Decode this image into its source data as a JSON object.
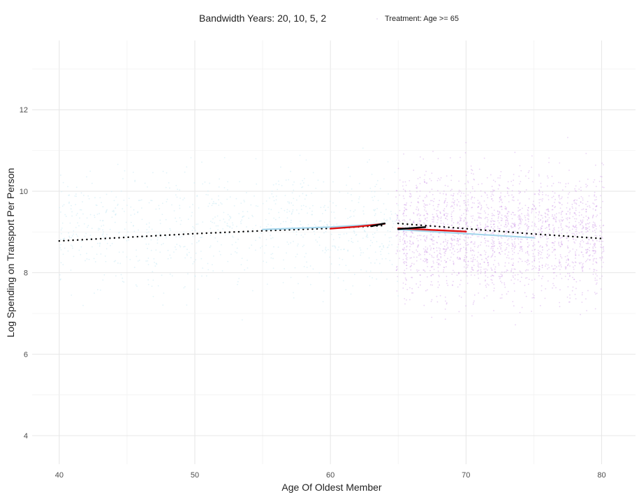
{
  "legend": {
    "title": "Bandwidth Years: 20, 10, 5, 2",
    "entry": "Treatment: Age >= 65"
  },
  "chart_data": {
    "type": "scatter",
    "xlabel": "Age Of Oldest Member",
    "ylabel": "Log Spending on Transport Per Person",
    "xlim": [
      38,
      82.5
    ],
    "ylim": [
      3.3,
      13.7
    ],
    "x_ticks": [
      40,
      50,
      60,
      70,
      80
    ],
    "y_ticks": [
      4,
      6,
      8,
      10,
      12
    ],
    "grid": true,
    "legend_position": "top",
    "cutoff": 65,
    "scatter_colors": {
      "control": "#c8eaf4",
      "treatment": "#c78ce6"
    },
    "series": [
      {
        "bandwidth": 20,
        "side": "control",
        "style": "dotted",
        "color": "#000000",
        "x": [
          40,
          45,
          50,
          55,
          60,
          64
        ],
        "y": [
          8.78,
          8.87,
          8.96,
          9.03,
          9.09,
          9.16
        ]
      },
      {
        "bandwidth": 20,
        "side": "treatment",
        "style": "dotted",
        "color": "#000000",
        "x": [
          65,
          70,
          75,
          80
        ],
        "y": [
          9.21,
          9.08,
          8.95,
          8.84
        ]
      },
      {
        "bandwidth": 10,
        "side": "control",
        "style": "solid",
        "color": "#a6d6ec",
        "x": [
          55,
          60,
          64
        ],
        "y": [
          9.06,
          9.12,
          9.2
        ]
      },
      {
        "bandwidth": 10,
        "side": "treatment",
        "style": "solid",
        "color": "#a6d6ec",
        "x": [
          65,
          70,
          75
        ],
        "y": [
          9.06,
          8.96,
          8.86
        ]
      },
      {
        "bandwidth": 5,
        "side": "control",
        "style": "solid",
        "color": "#e01010",
        "x": [
          60,
          62,
          64
        ],
        "y": [
          9.08,
          9.13,
          9.2
        ]
      },
      {
        "bandwidth": 5,
        "side": "treatment",
        "style": "solid",
        "color": "#e01010",
        "x": [
          65,
          67.5,
          70
        ],
        "y": [
          9.09,
          9.05,
          9.01
        ]
      },
      {
        "bandwidth": 2,
        "side": "control",
        "style": "solid",
        "color": "#000000",
        "x": [
          63,
          64
        ],
        "y": [
          9.14,
          9.21
        ]
      },
      {
        "bandwidth": 2,
        "side": "treatment",
        "style": "solid",
        "color": "#000000",
        "x": [
          65,
          67
        ],
        "y": [
          9.07,
          9.12
        ]
      }
    ]
  }
}
